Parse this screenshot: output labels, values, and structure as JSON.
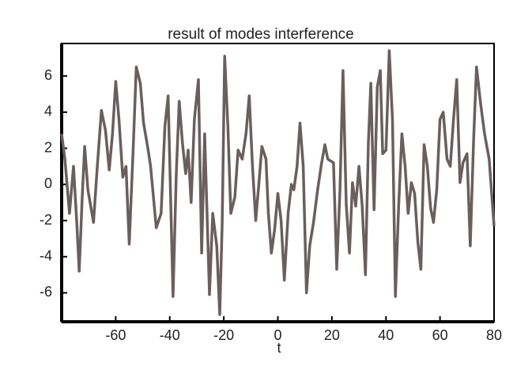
{
  "chart_data": {
    "type": "line",
    "title": "result of modes interference",
    "x_label": "t",
    "x": [
      -80,
      -78.8,
      -77.1,
      -75.6,
      -74.4,
      -73.5,
      -72.4,
      -71.5,
      -70.3,
      -68.2,
      -66.8,
      -65.3,
      -63.8,
      -62.4,
      -61.2,
      -60,
      -58.8,
      -57.4,
      -56.2,
      -55,
      -53.5,
      -52.4,
      -50.9,
      -49.7,
      -48.2,
      -47.1,
      -45,
      -43.2,
      -41.8,
      -40.6,
      -38.8,
      -37.6,
      -36.5,
      -35.3,
      -34.1,
      -33.2,
      -32.1,
      -30.9,
      -29.4,
      -28.2,
      -27.1,
      -25.3,
      -24.1,
      -22.6,
      -21.5,
      -20.6,
      -19.7,
      -18.5,
      -17.4,
      -15.9,
      -14.7,
      -13.2,
      -11.8,
      -10.6,
      -9.4,
      -8.2,
      -7.1,
      -5.9,
      -4.4,
      -3.5,
      -2.4,
      -1.2,
      0,
      1.2,
      2.4,
      3.8,
      5,
      5.9,
      7.1,
      8.2,
      9.4,
      10.6,
      11.8,
      13.2,
      14.7,
      16.2,
      17.4,
      18.5,
      20.6,
      21.8,
      23,
      24.1,
      25.3,
      26.5,
      27.6,
      28.8,
      30,
      31.2,
      32.4,
      33.5,
      34.4,
      35.6,
      36.8,
      37.9,
      38.8,
      40,
      41.2,
      42.4,
      43.5,
      44.7,
      45.9,
      47.1,
      48.2,
      49.4,
      50.6,
      51.8,
      52.9,
      54.1,
      55.3,
      56.5,
      57.6,
      58.8,
      60,
      61.2,
      62.6,
      63.8,
      65,
      66.2,
      67.4,
      68.5,
      70,
      71.2,
      72.4,
      73.5,
      75,
      76.5,
      78.2,
      80
    ],
    "series": [
      {
        "color": "#6b5e5e",
        "values": [
          2.8,
          1.4,
          -1.6,
          1.0,
          -2.1,
          -4.8,
          -0.7,
          2.1,
          -0.3,
          -2.1,
          1.0,
          4.1,
          3.0,
          0.8,
          2.8,
          5.7,
          3.6,
          0.4,
          1.0,
          -3.3,
          2.1,
          6.5,
          5.6,
          3.4,
          2.1,
          1.0,
          -2.4,
          -1.6,
          3.2,
          4.9,
          -6.2,
          0.6,
          4.6,
          2.3,
          0.6,
          1.9,
          -1.0,
          3.6,
          5.8,
          -3.8,
          2.8,
          -6.1,
          -1.6,
          -3.4,
          -7.2,
          -2.1,
          7.1,
          3.2,
          -1.6,
          -0.7,
          1.9,
          1.4,
          2.8,
          4.9,
          1.0,
          -2.0,
          -0.1,
          2.1,
          1.4,
          -1.6,
          -3.8,
          -2.5,
          -0.5,
          -2.0,
          -5.3,
          -1.6,
          0.0,
          -0.3,
          1.0,
          3.4,
          1.0,
          -6.0,
          -3.4,
          -2.1,
          -0.3,
          1.2,
          2.2,
          1.4,
          1.2,
          -4.7,
          -0.3,
          6.3,
          -1.1,
          -3.8,
          0.1,
          -1.2,
          1.0,
          -1.2,
          -5.0,
          2.3,
          5.6,
          -1.4,
          5.4,
          6.3,
          1.7,
          1.9,
          7.4,
          3.6,
          -6.2,
          -1.2,
          2.8,
          1.0,
          -1.6,
          0.1,
          -0.5,
          -3.2,
          -4.7,
          2.2,
          1.0,
          -1.3,
          -2.1,
          -0.3,
          3.6,
          4.0,
          1.4,
          1.0,
          3.6,
          5.8,
          0.1,
          1.2,
          1.7,
          -3.4,
          2.3,
          6.5,
          4.5,
          2.8,
          1.4,
          -2.3
        ]
      }
    ],
    "xlim": [
      -80,
      80
    ],
    "ylim": [
      -7.6,
      7.8
    ],
    "xticks": [
      -60,
      -40,
      -20,
      0,
      20,
      40,
      60,
      80
    ],
    "yticks": [
      -6,
      -4,
      -2,
      0,
      2,
      4,
      6
    ]
  }
}
